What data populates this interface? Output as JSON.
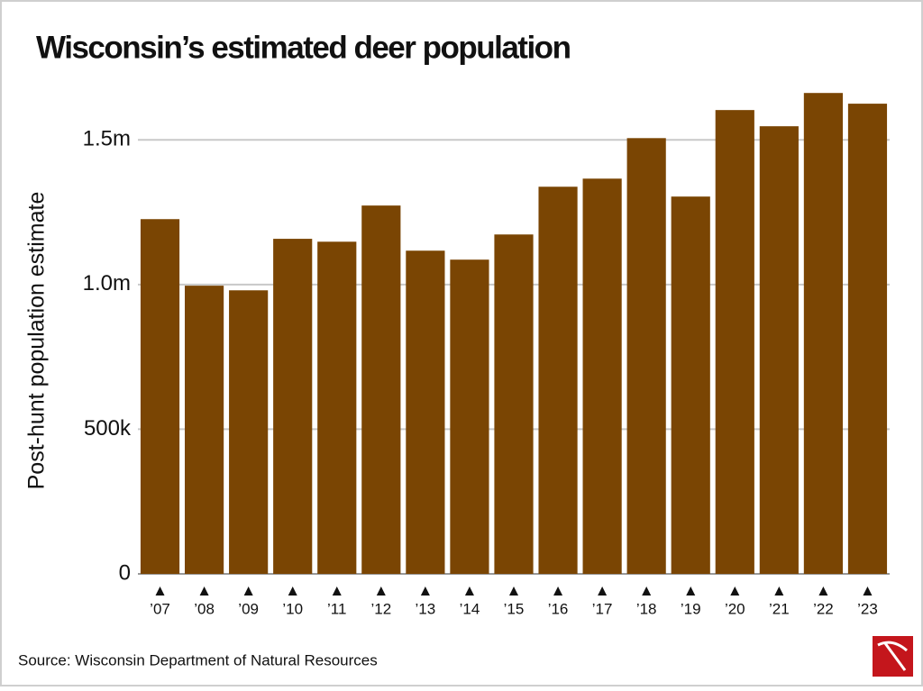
{
  "chart_data": {
    "type": "bar",
    "title": "Wisconsin’s estimated deer population",
    "y_axis_label": "Post-hunt population estimate",
    "source": "Source: Wisconsin Department of Natural Resources",
    "categories": [
      "’07",
      "’08",
      "’09",
      "’10",
      "’11",
      "’12",
      "’13",
      "’14",
      "’15",
      "’16",
      "’17",
      "’18",
      "’19",
      "’20",
      "’21",
      "’22",
      "’23"
    ],
    "values": [
      1226000,
      996000,
      980000,
      1158000,
      1148000,
      1273000,
      1117000,
      1086000,
      1173000,
      1338000,
      1366000,
      1506000,
      1304000,
      1603000,
      1547000,
      1662000,
      1625000
    ],
    "color": "#7a4503",
    "ylim": [
      0,
      1700000
    ],
    "yticks": [
      0,
      {
        "value": 500000,
        "label": "500k"
      },
      {
        "value": 1000000,
        "label": "1.0m"
      },
      {
        "value": 1500000,
        "label": "1.5m"
      }
    ],
    "grid": true
  }
}
